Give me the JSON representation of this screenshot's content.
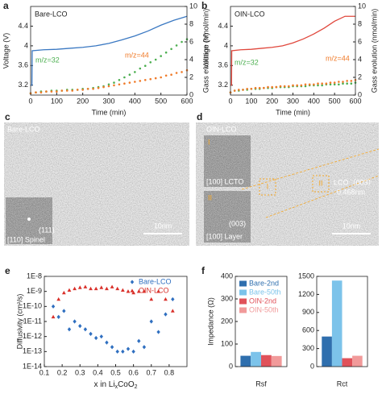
{
  "chart_data": [
    {
      "panel": "a",
      "type": "line",
      "title": "Bare-LCO",
      "xlabel": "Time (min)",
      "ylabel": "Voltage (V)",
      "y2label": "Gass evolution (nmol/min)",
      "xlim": [
        0,
        600
      ],
      "xticks": [
        0,
        100,
        200,
        300,
        400,
        500,
        600
      ],
      "ylim": [
        3.0,
        4.8
      ],
      "yticks": [
        3.2,
        3.6,
        4.0,
        4.4
      ],
      "y2lim": [
        0,
        10
      ],
      "y2ticks": [
        0,
        2,
        4,
        6,
        8,
        10
      ],
      "annotations": [
        {
          "text": "m/z=32",
          "color": "#4caf50"
        },
        {
          "text": "m/z=44",
          "color": "#f07b2a"
        }
      ],
      "series": [
        {
          "color": "#3a78c2",
          "mode": "line",
          "x": [
            0,
            5,
            6,
            50,
            100,
            150,
            200,
            250,
            300,
            350,
            400,
            450,
            500,
            550,
            600
          ],
          "values": [
            3.2,
            3.2,
            3.9,
            3.92,
            3.93,
            3.95,
            3.97,
            4.0,
            4.05,
            4.12,
            4.2,
            4.3,
            4.42,
            4.52,
            4.6
          ]
        },
        {
          "color": "#4caf50",
          "mode": "markers",
          "axis": "y2",
          "x": [
            0,
            20,
            40,
            60,
            80,
            100,
            120,
            140,
            160,
            180,
            200,
            220,
            240,
            260,
            280,
            300,
            320,
            340,
            360,
            380,
            400,
            420,
            440,
            460,
            480,
            500,
            520,
            540,
            560,
            580,
            600
          ],
          "values": [
            0.2,
            0.3,
            0.4,
            0.4,
            0.5,
            0.5,
            0.5,
            0.6,
            0.6,
            0.6,
            0.7,
            0.7,
            0.8,
            0.9,
            1.0,
            1.2,
            1.4,
            1.7,
            2.0,
            2.3,
            2.6,
            3.0,
            3.3,
            3.7,
            4.0,
            4.4,
            4.8,
            5.2,
            5.6,
            6.0,
            6.3
          ]
        },
        {
          "color": "#f07b2a",
          "mode": "markers",
          "axis": "y2",
          "x": [
            0,
            20,
            40,
            60,
            80,
            100,
            120,
            140,
            160,
            180,
            200,
            220,
            240,
            260,
            280,
            300,
            320,
            340,
            360,
            380,
            400,
            420,
            440,
            460,
            480,
            500,
            520,
            540,
            560,
            580,
            600
          ],
          "values": [
            0.2,
            0.3,
            0.3,
            0.4,
            0.4,
            0.4,
            0.5,
            0.5,
            0.5,
            0.6,
            0.6,
            0.7,
            0.7,
            0.8,
            0.9,
            1.0,
            1.1,
            1.2,
            1.3,
            1.4,
            1.5,
            1.6,
            1.7,
            1.8,
            1.9,
            2.0,
            2.2,
            2.3,
            2.5,
            2.6,
            2.8
          ]
        }
      ]
    },
    {
      "panel": "b",
      "type": "line",
      "title": "OIN-LCO",
      "xlabel": "Time (min)",
      "ylabel": "Voltage (V)",
      "y2label": "Gass evolution (nmol/min)",
      "xlim": [
        0,
        600
      ],
      "xticks": [
        0,
        100,
        200,
        300,
        400,
        500,
        600
      ],
      "ylim": [
        3.0,
        4.8
      ],
      "yticks": [
        3.2,
        3.6,
        4.0,
        4.4
      ],
      "y2lim": [
        0,
        10
      ],
      "y2ticks": [
        0,
        2,
        4,
        6,
        8,
        10
      ],
      "annotations": [
        {
          "text": "m/z=32",
          "color": "#4caf50"
        },
        {
          "text": "m/z=44",
          "color": "#f07b2a"
        }
      ],
      "series": [
        {
          "color": "#e0473c",
          "mode": "line",
          "x": [
            0,
            5,
            6,
            50,
            100,
            150,
            200,
            250,
            300,
            350,
            400,
            450,
            500,
            550,
            600
          ],
          "values": [
            3.2,
            3.2,
            3.9,
            3.92,
            3.93,
            3.95,
            3.97,
            4.0,
            4.06,
            4.14,
            4.24,
            4.36,
            4.5,
            4.6,
            4.6
          ]
        },
        {
          "color": "#4caf50",
          "mode": "markers",
          "axis": "y2",
          "x": [
            0,
            20,
            40,
            60,
            80,
            100,
            120,
            140,
            160,
            180,
            200,
            220,
            240,
            260,
            280,
            300,
            320,
            340,
            360,
            380,
            400,
            420,
            440,
            460,
            480,
            500,
            520,
            540,
            560,
            580,
            600
          ],
          "values": [
            0.3,
            0.5,
            0.5,
            0.6,
            0.6,
            0.7,
            0.7,
            0.7,
            0.8,
            0.8,
            0.8,
            0.9,
            0.9,
            0.9,
            0.9,
            1.0,
            1.0,
            1.0,
            1.0,
            1.1,
            1.1,
            1.1,
            1.1,
            1.2,
            1.2,
            1.2,
            1.2,
            1.3,
            1.3,
            1.3,
            1.4
          ]
        },
        {
          "color": "#f07b2a",
          "mode": "markers",
          "axis": "y2",
          "x": [
            0,
            20,
            40,
            60,
            80,
            100,
            120,
            140,
            160,
            180,
            200,
            220,
            240,
            260,
            280,
            300,
            320,
            340,
            360,
            380,
            400,
            420,
            440,
            460,
            480,
            500,
            520,
            540,
            560,
            580,
            600
          ],
          "values": [
            0.3,
            0.5,
            0.6,
            0.6,
            0.7,
            0.7,
            0.8,
            0.8,
            0.8,
            0.9,
            0.9,
            0.9,
            1.0,
            1.0,
            1.0,
            1.1,
            1.1,
            1.1,
            1.2,
            1.2,
            1.2,
            1.3,
            1.3,
            1.3,
            1.4,
            1.4,
            1.5,
            1.5,
            1.6,
            1.6,
            1.7
          ]
        }
      ]
    },
    {
      "panel": "e",
      "type": "scatter",
      "xlabel": [
        "x in Li",
        "x",
        "CoO",
        "2"
      ],
      "ylabel": "Diffusivity (cm²/s)",
      "yscale": "log",
      "xlim": [
        0.1,
        0.9
      ],
      "xticks": [
        0.1,
        0.2,
        0.3,
        0.4,
        0.5,
        0.6,
        0.7,
        0.8
      ],
      "ylim": [
        1e-14,
        1e-08
      ],
      "yticks": [
        {
          "value": 1e-14,
          "label": "1E-14"
        },
        {
          "value": 1e-13,
          "label": "1E-13"
        },
        {
          "value": 1e-12,
          "label": "1E-12"
        },
        {
          "value": 1e-11,
          "label": "1E-11"
        },
        {
          "value": 1e-10,
          "label": "1E-10"
        },
        {
          "value": 1e-09,
          "label": "1E-9"
        },
        {
          "value": 1e-08,
          "label": "1E-8"
        }
      ],
      "legend": "upper right",
      "series": [
        {
          "name": "Bare-LCO",
          "color": "#2f6fc0",
          "marker": "diamond",
          "x": [
            0.15,
            0.18,
            0.21,
            0.24,
            0.27,
            0.3,
            0.33,
            0.36,
            0.39,
            0.42,
            0.45,
            0.48,
            0.51,
            0.54,
            0.57,
            0.6,
            0.63,
            0.66,
            0.7,
            0.74,
            0.78,
            0.82
          ],
          "values": [
            1e-10,
            2e-11,
            5e-11,
            3e-12,
            1e-11,
            5e-12,
            3e-12,
            1.5e-12,
            8e-13,
            1e-12,
            4e-13,
            2e-13,
            1e-13,
            1e-13,
            1.5e-13,
            1e-13,
            5e-13,
            2e-13,
            1e-11,
            2e-12,
            3e-11,
            3e-10
          ]
        },
        {
          "name": "OIN-LCO",
          "color": "#d9302a",
          "marker": "triangle",
          "x": [
            0.15,
            0.18,
            0.21,
            0.24,
            0.27,
            0.3,
            0.33,
            0.36,
            0.39,
            0.42,
            0.45,
            0.48,
            0.51,
            0.54,
            0.57,
            0.6,
            0.63,
            0.66,
            0.7,
            0.74,
            0.78,
            0.82
          ],
          "values": [
            2e-11,
            3e-10,
            8e-10,
            1.2e-09,
            1.5e-09,
            1.8e-09,
            2e-09,
            1.5e-09,
            1.5e-09,
            1.8e-09,
            1.5e-09,
            2e-09,
            1.5e-09,
            1.2e-09,
            1e-09,
            8e-10,
            1e-09,
            1e-09,
            3e-10,
            1e-09,
            3e-10,
            5e-11
          ]
        }
      ]
    },
    {
      "panel": "f",
      "type": "bar",
      "ylabel": "Impedance (Ω)",
      "categories": [
        "Rsf"
      ],
      "ylim": [
        0,
        400
      ],
      "yticks": [
        0,
        100,
        200,
        300,
        400
      ],
      "legend": "upper left",
      "series": [
        {
          "name": "Bare-2nd",
          "color": "#2f6fae",
          "values": [
            48
          ]
        },
        {
          "name": "Bare-50th",
          "color": "#7cc3ea",
          "values": [
            65
          ]
        },
        {
          "name": "OIN-2nd",
          "color": "#e0525a",
          "values": [
            51
          ]
        },
        {
          "name": "OIN-50th",
          "color": "#f19a9a",
          "values": [
            47
          ]
        }
      ]
    },
    {
      "type": "bar",
      "categories": [
        "Rct"
      ],
      "ylim": [
        0,
        1500
      ],
      "yticks": [
        0,
        300,
        600,
        900,
        1200,
        1500
      ],
      "series": [
        {
          "color": "#2f6fae",
          "values": [
            500
          ]
        },
        {
          "color": "#7cc3ea",
          "values": [
            1430
          ]
        },
        {
          "color": "#e0525a",
          "values": [
            140
          ]
        },
        {
          "color": "#f19a9a",
          "values": [
            180
          ]
        }
      ]
    }
  ],
  "images": [
    {
      "panel": "c",
      "title": "Bare-LCO",
      "spot": "(111)",
      "caption": "[110] Spinel",
      "scale_bar": "10nm"
    },
    {
      "panel": "d",
      "title": "OIN-LCO",
      "insets": [
        {
          "mark": "I",
          "caption": "[100] LCTO"
        },
        {
          "mark": "II",
          "spot": "(003)",
          "caption": "[100] Layer"
        }
      ],
      "regions": [
        "I",
        "II"
      ],
      "spacing_label": "LCO（003）",
      "spacing": "0.468nm",
      "scale_bar": "10nm"
    }
  ]
}
